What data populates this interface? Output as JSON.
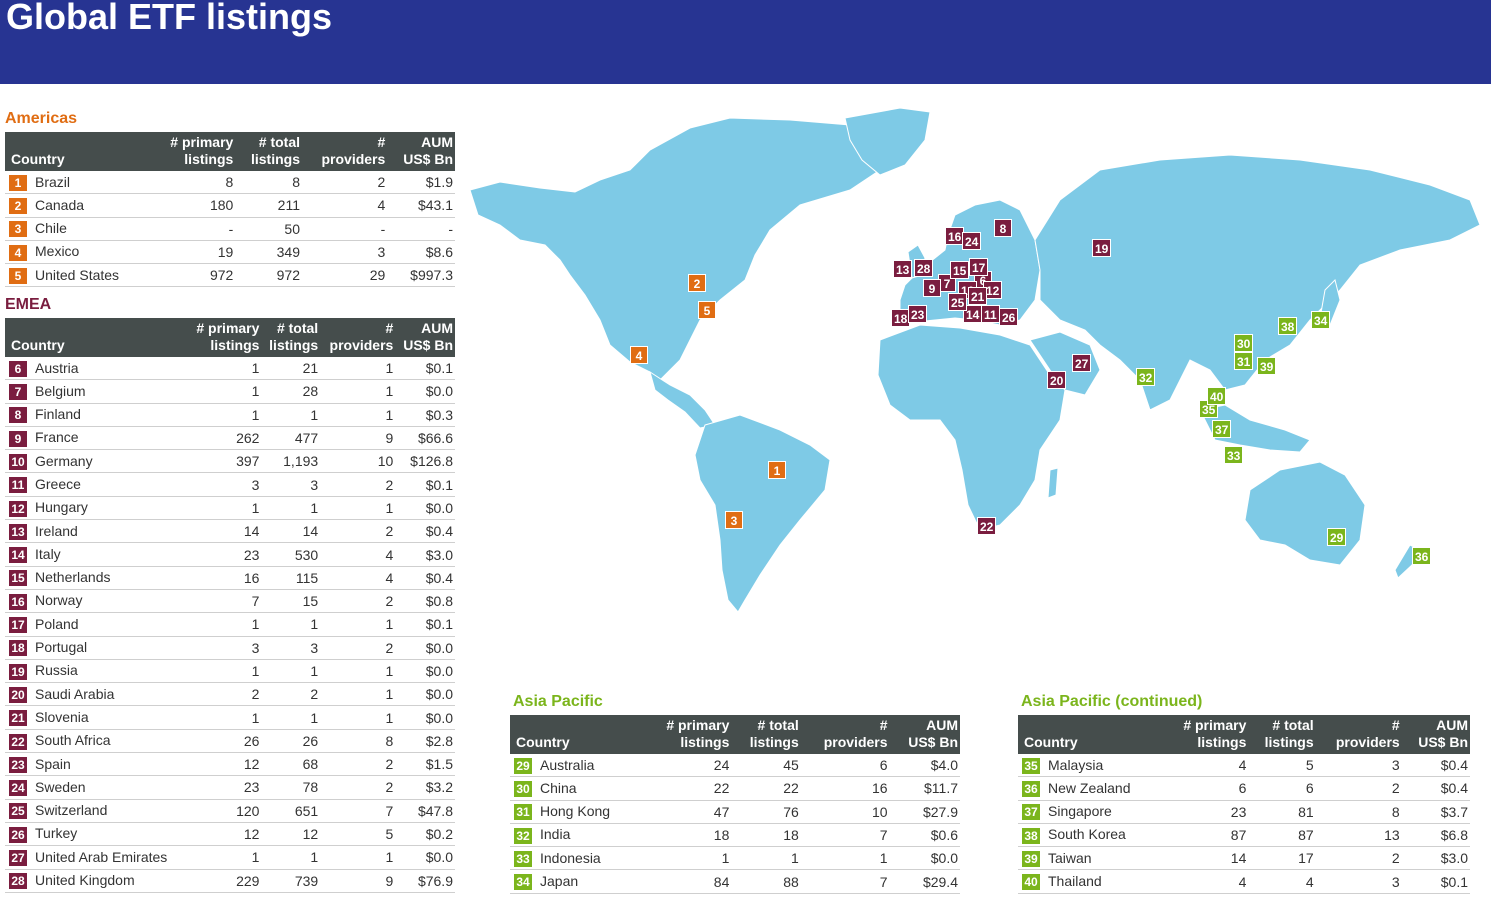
{
  "title": "Global ETF listings",
  "columns": {
    "country": "Country",
    "primary": "# primary listings",
    "total": "# total listings",
    "providers": "# providers",
    "aum": "AUM US$ Bn"
  },
  "americas": {
    "title": "Americas",
    "rows": [
      {
        "n": "1",
        "country": "Brazil",
        "primary": "8",
        "total": "8",
        "providers": "2",
        "aum": "$1.9"
      },
      {
        "n": "2",
        "country": "Canada",
        "primary": "180",
        "total": "211",
        "providers": "4",
        "aum": "$43.1"
      },
      {
        "n": "3",
        "country": "Chile",
        "primary": "-",
        "total": "50",
        "providers": "-",
        "aum": "-"
      },
      {
        "n": "4",
        "country": "Mexico",
        "primary": "19",
        "total": "349",
        "providers": "3",
        "aum": "$8.6"
      },
      {
        "n": "5",
        "country": "United States",
        "primary": "972",
        "total": "972",
        "providers": "29",
        "aum": "$997.3"
      }
    ]
  },
  "emea": {
    "title": "EMEA",
    "rows": [
      {
        "n": "6",
        "country": "Austria",
        "primary": "1",
        "total": "21",
        "providers": "1",
        "aum": "$0.1"
      },
      {
        "n": "7",
        "country": "Belgium",
        "primary": "1",
        "total": "28",
        "providers": "1",
        "aum": "$0.0"
      },
      {
        "n": "8",
        "country": "Finland",
        "primary": "1",
        "total": "1",
        "providers": "1",
        "aum": "$0.3"
      },
      {
        "n": "9",
        "country": "France",
        "primary": "262",
        "total": "477",
        "providers": "9",
        "aum": "$66.6"
      },
      {
        "n": "10",
        "country": "Germany",
        "primary": "397",
        "total": "1,193",
        "providers": "10",
        "aum": "$126.8"
      },
      {
        "n": "11",
        "country": "Greece",
        "primary": "3",
        "total": "3",
        "providers": "2",
        "aum": "$0.1"
      },
      {
        "n": "12",
        "country": "Hungary",
        "primary": "1",
        "total": "1",
        "providers": "1",
        "aum": "$0.0"
      },
      {
        "n": "13",
        "country": "Ireland",
        "primary": "14",
        "total": "14",
        "providers": "2",
        "aum": "$0.4"
      },
      {
        "n": "14",
        "country": "Italy",
        "primary": "23",
        "total": "530",
        "providers": "4",
        "aum": "$3.0"
      },
      {
        "n": "15",
        "country": "Netherlands",
        "primary": "16",
        "total": "115",
        "providers": "4",
        "aum": "$0.4"
      },
      {
        "n": "16",
        "country": "Norway",
        "primary": "7",
        "total": "15",
        "providers": "2",
        "aum": "$0.8"
      },
      {
        "n": "17",
        "country": "Poland",
        "primary": "1",
        "total": "1",
        "providers": "1",
        "aum": "$0.1"
      },
      {
        "n": "18",
        "country": "Portugal",
        "primary": "3",
        "total": "3",
        "providers": "2",
        "aum": "$0.0"
      },
      {
        "n": "19",
        "country": "Russia",
        "primary": "1",
        "total": "1",
        "providers": "1",
        "aum": "$0.0"
      },
      {
        "n": "20",
        "country": "Saudi Arabia",
        "primary": "2",
        "total": "2",
        "providers": "1",
        "aum": "$0.0"
      },
      {
        "n": "21",
        "country": "Slovenia",
        "primary": "1",
        "total": "1",
        "providers": "1",
        "aum": "$0.0"
      },
      {
        "n": "22",
        "country": "South Africa",
        "primary": "26",
        "total": "26",
        "providers": "8",
        "aum": "$2.8"
      },
      {
        "n": "23",
        "country": "Spain",
        "primary": "12",
        "total": "68",
        "providers": "2",
        "aum": "$1.5"
      },
      {
        "n": "24",
        "country": "Sweden",
        "primary": "23",
        "total": "78",
        "providers": "2",
        "aum": "$3.2"
      },
      {
        "n": "25",
        "country": "Switzerland",
        "primary": "120",
        "total": "651",
        "providers": "7",
        "aum": "$47.8"
      },
      {
        "n": "26",
        "country": "Turkey",
        "primary": "12",
        "total": "12",
        "providers": "5",
        "aum": "$0.2"
      },
      {
        "n": "27",
        "country": "United Arab Emirates",
        "primary": "1",
        "total": "1",
        "providers": "1",
        "aum": "$0.0"
      },
      {
        "n": "28",
        "country": "United Kingdom",
        "primary": "229",
        "total": "739",
        "providers": "9",
        "aum": "$76.9"
      }
    ]
  },
  "asia1": {
    "title": "Asia Pacific",
    "rows": [
      {
        "n": "29",
        "country": "Australia",
        "primary": "24",
        "total": "45",
        "providers": "6",
        "aum": "$4.0"
      },
      {
        "n": "30",
        "country": "China",
        "primary": "22",
        "total": "22",
        "providers": "16",
        "aum": "$11.7"
      },
      {
        "n": "31",
        "country": "Hong Kong",
        "primary": "47",
        "total": "76",
        "providers": "10",
        "aum": "$27.9"
      },
      {
        "n": "32",
        "country": "India",
        "primary": "18",
        "total": "18",
        "providers": "7",
        "aum": "$0.6"
      },
      {
        "n": "33",
        "country": "Indonesia",
        "primary": "1",
        "total": "1",
        "providers": "1",
        "aum": "$0.0"
      },
      {
        "n": "34",
        "country": "Japan",
        "primary": "84",
        "total": "88",
        "providers": "7",
        "aum": "$29.4"
      }
    ]
  },
  "asia2": {
    "title": "Asia Pacific (continued)",
    "rows": [
      {
        "n": "35",
        "country": "Malaysia",
        "primary": "4",
        "total": "5",
        "providers": "3",
        "aum": "$0.4"
      },
      {
        "n": "36",
        "country": "New Zealand",
        "primary": "6",
        "total": "6",
        "providers": "2",
        "aum": "$0.4"
      },
      {
        "n": "37",
        "country": "Singapore",
        "primary": "23",
        "total": "81",
        "providers": "8",
        "aum": "$3.7"
      },
      {
        "n": "38",
        "country": "South Korea",
        "primary": "87",
        "total": "87",
        "providers": "13",
        "aum": "$6.8"
      },
      {
        "n": "39",
        "country": "Taiwan",
        "primary": "14",
        "total": "17",
        "providers": "2",
        "aum": "$3.0"
      },
      {
        "n": "40",
        "country": "Thailand",
        "primary": "4",
        "total": "4",
        "providers": "3",
        "aum": "$0.1"
      }
    ]
  },
  "colors": {
    "americas": "#e06d13",
    "emea": "#7a1d3f",
    "asia": "#7bb51c",
    "land": "#7ecae6",
    "header": "#273492"
  }
}
